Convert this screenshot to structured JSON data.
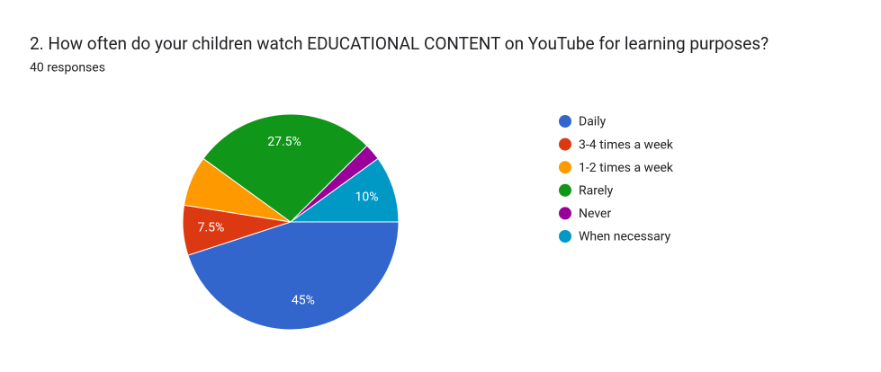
{
  "chart_data": {
    "type": "pie",
    "title": "2.  How often do your children watch EDUCATIONAL CONTENT on YouTube  for learning purposes?",
    "subtitle": "40 responses",
    "categories": [
      "Daily",
      "3-4 times a week",
      "1-2 times a week",
      "Rarely",
      "Never",
      "When necessary"
    ],
    "values": [
      45,
      7.5,
      7.5,
      27.5,
      2.5,
      10
    ],
    "value_labels": [
      "45%",
      "7.5%",
      null,
      "27.5%",
      null,
      "10%"
    ],
    "colors": [
      "#3366cc",
      "#dc3912",
      "#ff9900",
      "#109618",
      "#990099",
      "#0099c6"
    ],
    "legend": "right"
  }
}
